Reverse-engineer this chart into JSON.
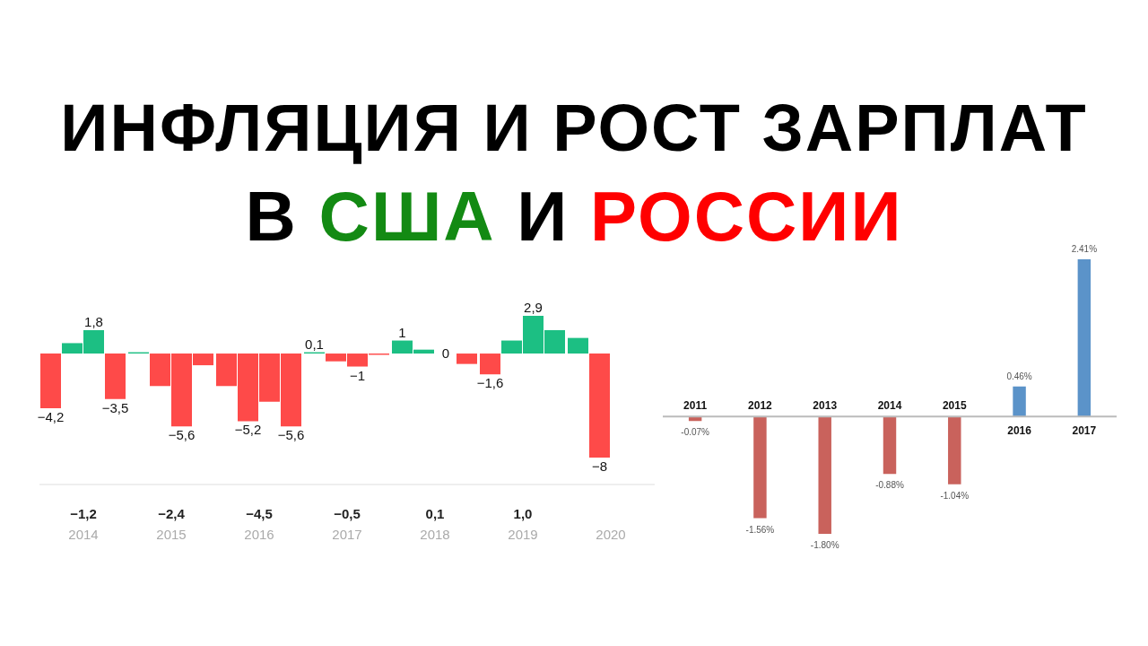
{
  "chart_data": [
    {
      "type": "bar",
      "title": "ИНФЛЯЦИЯ И РОСТ ЗАРПЛАТ",
      "subtitle": "В США И РОССИИ",
      "categories": [
        "2014",
        "2015",
        "2016",
        "2017",
        "2018",
        "2019",
        "2020"
      ],
      "series": [
        {
          "values": [
            -4.2,
            0.1,
            -2.5,
            0.1,
            1,
            -1.6,
            1.2
          ],
          "colors": [
            "#fe4a49",
            "#1cbf83",
            "#fe4a49",
            "#1cbf83",
            "#1cbf83",
            "#fe4a49",
            "#1cbf83"
          ],
          "value_labels": [
            "−4,2",
            null,
            null,
            "0,1",
            "1",
            "−1,6",
            null
          ]
        },
        {
          "values": [
            0.8,
            -2.5,
            -5.2,
            -0.6,
            0.3,
            1.0,
            -8
          ],
          "colors": [
            "#1cbf83",
            "#fe4a49",
            "#fe4a49",
            "#fe4a49",
            "#1cbf83",
            "#1cbf83",
            "#fe4a49"
          ],
          "value_labels": [
            null,
            null,
            "−5,2",
            null,
            null,
            null,
            "−8"
          ]
        },
        {
          "values": [
            1.8,
            -5.6,
            -3.7,
            -1,
            0,
            2.9,
            null
          ],
          "colors": [
            "#1cbf83",
            "#fe4a49",
            "#fe4a49",
            "#fe4a49",
            "#1cbf83",
            "#1cbf83",
            "#1cbf83"
          ],
          "value_labels": [
            "1,8",
            "−5,6",
            null,
            "−1",
            "0",
            "2,9",
            null
          ]
        },
        {
          "values": [
            -3.5,
            -0.9,
            -5.6,
            -0.1,
            -0.8,
            1.8,
            null
          ],
          "colors": [
            "#fe4a49",
            "#fe4a49",
            "#fe4a49",
            "#fe4a49",
            "#fe4a49",
            "#1cbf83",
            "#1cbf83"
          ],
          "value_labels": [
            "−3,5",
            null,
            "−5,6",
            null,
            null,
            null,
            null
          ]
        }
      ],
      "annotations": [
        "−1,2",
        "−2,4",
        "−4,5",
        "−0,5",
        "0,1",
        "1,0"
      ]
    },
    {
      "type": "bar",
      "categories": [
        "2011",
        "2012",
        "2013",
        "2014",
        "2015",
        "2016",
        "2017"
      ],
      "values": [
        -0.07,
        -1.56,
        -1.8,
        -0.88,
        -1.04,
        0.46,
        2.41
      ],
      "value_labels": [
        "-0.07%",
        "-1.56%",
        "-1.80%",
        "-0.88%",
        "-1.04%",
        "0.46%",
        "2.41%"
      ],
      "colors": [
        "#c9625c",
        "#c9625c",
        "#c9625c",
        "#c9625c",
        "#c9625c",
        "#5b93c9",
        "#5b93c9"
      ]
    }
  ]
}
